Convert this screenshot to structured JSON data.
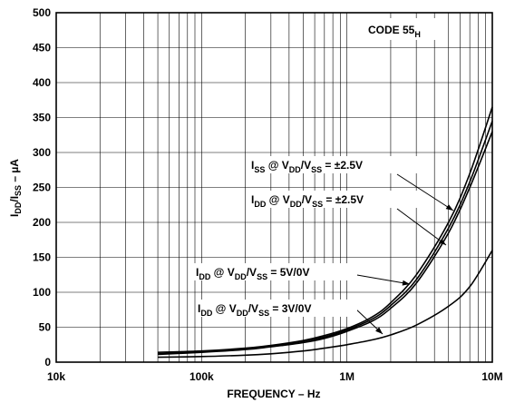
{
  "chart_data": {
    "type": "line",
    "xlabel": "FREQUENCY – Hz",
    "ylabel": {
      "main": "I",
      "s1": "DD",
      "mid": "/I",
      "s2": "SS",
      "tail": " – µA"
    },
    "x_scale": "log",
    "xlim": [
      10000,
      10000000
    ],
    "ylim": [
      0,
      500
    ],
    "x_ticks": [
      {
        "value": 10000,
        "label": "10k"
      },
      {
        "value": 100000,
        "label": "100k"
      },
      {
        "value": 1000000,
        "label": "1M"
      },
      {
        "value": 10000000,
        "label": "10M"
      }
    ],
    "y_ticks": [
      0,
      50,
      100,
      150,
      200,
      250,
      300,
      350,
      400,
      450,
      500
    ],
    "grid": true,
    "code_label": {
      "main": "CODE 55",
      "sub": "H"
    },
    "series": [
      {
        "id": "iss-25",
        "annotation": {
          "a": "I",
          "a_sub": "SS",
          "b": " @ V",
          "b_sub": "DD",
          "c": "/V",
          "c_sub": "SS",
          "d": " = ±2.5V"
        },
        "points": [
          [
            50000,
            14
          ],
          [
            100000,
            16
          ],
          [
            200000,
            20
          ],
          [
            300000,
            24
          ],
          [
            500000,
            31
          ],
          [
            700000,
            38
          ],
          [
            1000000,
            48
          ],
          [
            1500000,
            65
          ],
          [
            2000000,
            85
          ],
          [
            3000000,
            125
          ],
          [
            5000000,
            200
          ],
          [
            7000000,
            270
          ],
          [
            10000000,
            365
          ]
        ]
      },
      {
        "id": "idd-25",
        "annotation": {
          "a": "I",
          "a_sub": "DD",
          "b": " @ V",
          "b_sub": "DD",
          "c": "/V",
          "c_sub": "SS",
          "d": " = ±2.5V"
        },
        "points": [
          [
            50000,
            12
          ],
          [
            100000,
            15
          ],
          [
            200000,
            19
          ],
          [
            300000,
            23
          ],
          [
            500000,
            30
          ],
          [
            700000,
            36
          ],
          [
            1000000,
            46
          ],
          [
            1500000,
            62
          ],
          [
            2000000,
            81
          ],
          [
            3000000,
            118
          ],
          [
            5000000,
            192
          ],
          [
            7000000,
            258
          ],
          [
            10000000,
            345
          ]
        ]
      },
      {
        "id": "idd-5",
        "annotation": {
          "a": "I",
          "a_sub": "DD",
          "b": " @ V",
          "b_sub": "DD",
          "c": "/V",
          "c_sub": "SS",
          "d": " = 5V/0V"
        },
        "points": [
          [
            50000,
            11
          ],
          [
            100000,
            14
          ],
          [
            200000,
            18
          ],
          [
            300000,
            22
          ],
          [
            500000,
            28
          ],
          [
            700000,
            34
          ],
          [
            1000000,
            44
          ],
          [
            1500000,
            59
          ],
          [
            2000000,
            77
          ],
          [
            3000000,
            113
          ],
          [
            5000000,
            185
          ],
          [
            7000000,
            250
          ],
          [
            10000000,
            330
          ]
        ]
      },
      {
        "id": "idd-3",
        "annotation": {
          "a": "I",
          "a_sub": "DD",
          "b": " @ V",
          "b_sub": "DD",
          "c": "/V",
          "c_sub": "SS",
          "d": " = 3V/0V"
        },
        "points": [
          [
            50000,
            7
          ],
          [
            100000,
            8
          ],
          [
            200000,
            10
          ],
          [
            300000,
            12
          ],
          [
            500000,
            16
          ],
          [
            700000,
            20
          ],
          [
            1000000,
            25
          ],
          [
            1500000,
            32
          ],
          [
            2000000,
            39
          ],
          [
            3000000,
            53
          ],
          [
            5000000,
            80
          ],
          [
            7000000,
            108
          ],
          [
            10000000,
            160
          ]
        ]
      }
    ]
  }
}
